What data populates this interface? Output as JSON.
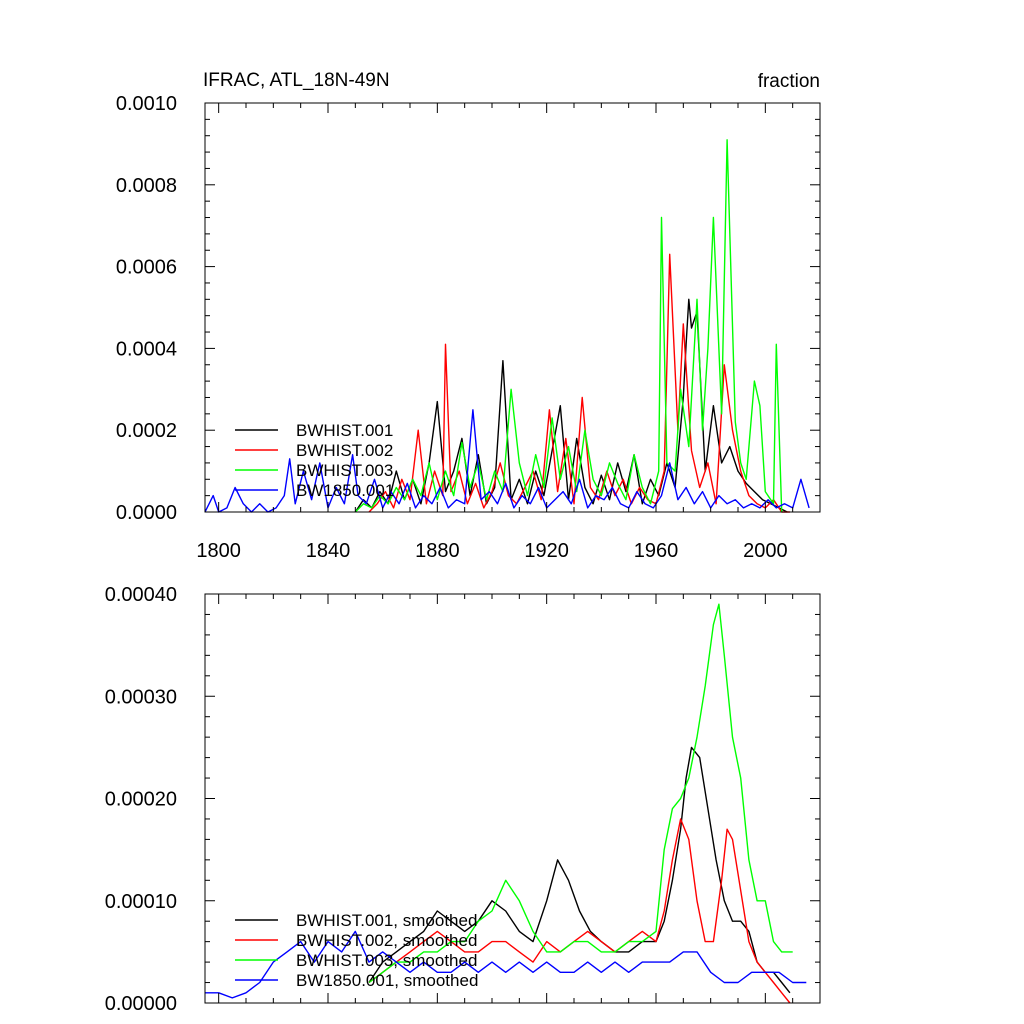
{
  "figure": {
    "title_left": "IFRAC, ATL_18N-49N",
    "title_right": "fraction"
  },
  "colors": {
    "BWHIST.001": "#000000",
    "BWHIST.002": "#ff0000",
    "BWHIST.003": "#00ff00",
    "BW1850.001": "#0000ff"
  },
  "chart_data": [
    {
      "type": "line",
      "title": "IFRAC, ATL_18N-49N",
      "units_label": "fraction",
      "xlim": [
        1795,
        2020
      ],
      "ylim": [
        0,
        0.001
      ],
      "xticks": [
        1800,
        1840,
        1880,
        1920,
        1960,
        2000
      ],
      "xtick_labels": [
        "1800",
        "1840",
        "1880",
        "1920",
        "1960",
        "2000"
      ],
      "yticks": [
        0,
        0.0002,
        0.0004,
        0.0006,
        0.0008,
        0.001
      ],
      "ytick_labels": [
        "0.0000",
        "0.0002",
        "0.0004",
        "0.0006",
        "0.0008",
        "0.0010"
      ],
      "legend_position": "bottom-left",
      "series": [
        {
          "name": "BWHIST.001",
          "color": "#000000",
          "x": [
            1850,
            1853,
            1856,
            1859,
            1862,
            1865,
            1868,
            1871,
            1874,
            1877,
            1880,
            1883,
            1886,
            1889,
            1892,
            1895,
            1898,
            1901,
            1904,
            1907,
            1910,
            1913,
            1916,
            1919,
            1922,
            1925,
            1928,
            1931,
            1934,
            1937,
            1940,
            1943,
            1946,
            1949,
            1952,
            1955,
            1958,
            1961,
            1964,
            1967,
            1970,
            1971,
            1972,
            1973,
            1975,
            1978,
            1981,
            1984,
            1987,
            1990,
            1993,
            1996,
            1999,
            2002,
            2005,
            2008
          ],
          "y": [
            0,
            3e-05,
            1e-05,
            5e-05,
            2e-05,
            0.0001,
            3e-05,
            8e-05,
            2e-05,
            0.00012,
            0.00027,
            5e-05,
            0.0001,
            0.00018,
            4e-05,
            0.00014,
            2e-05,
            6e-05,
            0.00037,
            3e-05,
            8e-05,
            2e-05,
            0.0001,
            4e-05,
            0.00015,
            0.00026,
            3e-05,
            0.00018,
            6e-05,
            2e-05,
            9e-05,
            3e-05,
            0.00012,
            5e-05,
            0.00014,
            2e-05,
            8e-05,
            4e-05,
            0.00012,
            6e-05,
            0.00028,
            0.00041,
            0.00052,
            0.00045,
            0.00049,
            0.0001,
            0.00026,
            0.00012,
            0.00016,
            0.0001,
            7e-05,
            5e-05,
            3e-05,
            2e-05,
            1e-05,
            0
          ]
        },
        {
          "name": "BWHIST.002",
          "color": "#ff0000",
          "x": [
            1855,
            1858,
            1861,
            1864,
            1867,
            1870,
            1873,
            1876,
            1879,
            1882,
            1883,
            1885,
            1888,
            1891,
            1894,
            1897,
            1900,
            1903,
            1906,
            1909,
            1912,
            1915,
            1918,
            1921,
            1924,
            1927,
            1930,
            1933,
            1936,
            1939,
            1942,
            1945,
            1948,
            1951,
            1954,
            1957,
            1960,
            1963,
            1965,
            1968,
            1970,
            1973,
            1976,
            1979,
            1982,
            1985,
            1988,
            1991,
            1994,
            1997,
            2000,
            2003,
            2006,
            2009
          ],
          "y": [
            0,
            2e-05,
            5e-05,
            1e-05,
            8e-05,
            3e-05,
            0.0002,
            2e-05,
            0.0001,
            4e-05,
            0.00041,
            5e-05,
            0.0001,
            2e-05,
            7e-05,
            1e-05,
            5e-05,
            0.00012,
            4e-05,
            2e-05,
            6e-05,
            0.0001,
            3e-05,
            0.00025,
            5e-05,
            0.00018,
            2e-05,
            0.00028,
            6e-05,
            3e-05,
            0.0001,
            4e-05,
            8e-05,
            2e-05,
            6e-05,
            3e-05,
            2e-05,
            0.0001,
            0.00063,
            0.0002,
            0.00046,
            0.00015,
            6e-05,
            0.00012,
            2e-05,
            0.00036,
            0.0002,
            0.0001,
            4e-05,
            2e-05,
            1e-05,
            3e-05,
            0,
            0
          ]
        },
        {
          "name": "BWHIST.003",
          "color": "#00ff00",
          "x": [
            1850,
            1853,
            1856,
            1859,
            1862,
            1865,
            1868,
            1871,
            1874,
            1877,
            1880,
            1883,
            1886,
            1889,
            1892,
            1895,
            1898,
            1901,
            1904,
            1907,
            1910,
            1913,
            1916,
            1919,
            1922,
            1925,
            1928,
            1931,
            1934,
            1937,
            1940,
            1943,
            1946,
            1949,
            1952,
            1955,
            1958,
            1961,
            1962,
            1964,
            1967,
            1969,
            1972,
            1975,
            1977,
            1979,
            1981,
            1984,
            1986,
            1989,
            1991,
            1993,
            1996,
            1998,
            2000,
            2003,
            2004,
            2006
          ],
          "y": [
            0,
            2e-05,
            1e-05,
            4e-05,
            2e-05,
            6e-05,
            3e-05,
            8e-05,
            4e-05,
            0.00012,
            3e-05,
            0.0001,
            4e-05,
            0.00017,
            6e-05,
            0.00012,
            3e-05,
            0.0001,
            5e-05,
            0.0003,
            0.00012,
            4e-05,
            0.00014,
            6e-05,
            0.00023,
            8e-05,
            0.00016,
            5e-05,
            0.0002,
            8e-05,
            4e-05,
            0.00012,
            7e-05,
            3e-05,
            0.00014,
            6e-05,
            2e-05,
            0.0001,
            0.00072,
            0.00012,
            0.0001,
            0.0003,
            0.00016,
            0.00052,
            0.0002,
            0.0004,
            0.00072,
            0.00024,
            0.00091,
            0.00022,
            0.00012,
            8e-05,
            0.00032,
            0.00026,
            5e-05,
            2e-05,
            0.00041,
            0
          ]
        },
        {
          "name": "BW1850.001",
          "color": "#0000ff",
          "x": [
            1795,
            1798,
            1800,
            1803,
            1806,
            1809,
            1812,
            1815,
            1818,
            1821,
            1824,
            1826,
            1828,
            1831,
            1834,
            1837,
            1840,
            1843,
            1846,
            1849,
            1851,
            1854,
            1857,
            1860,
            1863,
            1866,
            1869,
            1872,
            1875,
            1878,
            1881,
            1884,
            1887,
            1890,
            1893,
            1896,
            1899,
            1902,
            1905,
            1908,
            1911,
            1914,
            1917,
            1920,
            1923,
            1926,
            1929,
            1932,
            1935,
            1938,
            1941,
            1944,
            1947,
            1950,
            1953,
            1956,
            1959,
            1962,
            1965,
            1968,
            1971,
            1974,
            1977,
            1980,
            1983,
            1986,
            1989,
            1992,
            1995,
            1998,
            2001,
            2004,
            2007,
            2010,
            2013,
            2016
          ],
          "y": [
            0,
            4e-05,
            0,
            1e-05,
            6e-05,
            2e-05,
            0,
            2e-05,
            0,
            1e-05,
            4e-05,
            0.00013,
            2e-05,
            0.0001,
            3e-05,
            0.00012,
            1e-05,
            6e-05,
            2e-05,
            0.00014,
            4e-05,
            2e-05,
            8e-05,
            1e-05,
            5e-05,
            2e-05,
            7e-05,
            1e-05,
            4e-05,
            2e-05,
            6e-05,
            1e-05,
            3e-05,
            2e-05,
            0.00025,
            3e-05,
            5e-05,
            2e-05,
            7e-05,
            1e-05,
            4e-05,
            2e-05,
            6e-05,
            1e-05,
            3e-05,
            5e-05,
            2e-05,
            8e-05,
            1e-05,
            4e-05,
            3e-05,
            6e-05,
            2e-05,
            1e-05,
            5e-05,
            2e-05,
            1e-05,
            4e-05,
            0.00012,
            3e-05,
            6e-05,
            2e-05,
            5e-05,
            1e-05,
            4e-05,
            2e-05,
            3e-05,
            1e-05,
            2e-05,
            1e-05,
            3e-05,
            1e-05,
            2e-05,
            1e-05,
            8e-05,
            1e-05
          ]
        }
      ]
    },
    {
      "type": "line",
      "xlim": [
        1795,
        2020
      ],
      "ylim": [
        0,
        0.0004
      ],
      "xticks": [
        1800,
        1840,
        1880,
        1920,
        1960,
        2000
      ],
      "yticks": [
        0,
        0.0001,
        0.0002,
        0.0003,
        0.0004
      ],
      "ytick_labels": [
        "0.00000",
        "0.00010",
        "0.00020",
        "0.00030",
        "0.00040"
      ],
      "legend_position": "bottom-left",
      "series": [
        {
          "name": "BWHIST.001, smoothed",
          "color": "#000000",
          "x": [
            1855,
            1860,
            1865,
            1870,
            1875,
            1880,
            1885,
            1890,
            1895,
            1900,
            1905,
            1910,
            1915,
            1920,
            1924,
            1928,
            1932,
            1936,
            1940,
            1945,
            1950,
            1955,
            1960,
            1963,
            1966,
            1969,
            1971,
            1973,
            1976,
            1979,
            1982,
            1985,
            1988,
            1991,
            1994,
            1997,
            2000,
            2003,
            2006,
            2009
          ],
          "y": [
            2e-05,
            4e-05,
            5e-05,
            6e-05,
            7e-05,
            9e-05,
            8e-05,
            7e-05,
            8e-05,
            0.0001,
            9e-05,
            7e-05,
            6e-05,
            0.0001,
            0.00014,
            0.00012,
            9e-05,
            7e-05,
            6e-05,
            5e-05,
            5e-05,
            6e-05,
            6e-05,
            8e-05,
            0.00012,
            0.00017,
            0.00022,
            0.00025,
            0.00024,
            0.00019,
            0.00014,
            0.0001,
            8e-05,
            8e-05,
            7e-05,
            4e-05,
            3e-05,
            3e-05,
            2e-05,
            1e-05
          ]
        },
        {
          "name": "BWHIST.002, smoothed",
          "color": "#ff0000",
          "x": [
            1855,
            1860,
            1865,
            1870,
            1875,
            1880,
            1885,
            1890,
            1895,
            1900,
            1905,
            1910,
            1915,
            1920,
            1925,
            1930,
            1935,
            1940,
            1945,
            1950,
            1955,
            1960,
            1963,
            1966,
            1969,
            1972,
            1975,
            1978,
            1981,
            1984,
            1986,
            1988,
            1991,
            1994,
            1997,
            2000,
            2003,
            2006,
            2009
          ],
          "y": [
            2e-05,
            3e-05,
            4e-05,
            5e-05,
            6e-05,
            7e-05,
            6e-05,
            5e-05,
            5e-05,
            6e-05,
            6e-05,
            5e-05,
            4e-05,
            6e-05,
            5e-05,
            6e-05,
            7e-05,
            6e-05,
            5e-05,
            6e-05,
            7e-05,
            6e-05,
            9e-05,
            0.00014,
            0.00018,
            0.00016,
            0.0001,
            6e-05,
            6e-05,
            0.00012,
            0.00017,
            0.00016,
            0.00011,
            6e-05,
            4e-05,
            3e-05,
            2e-05,
            1e-05,
            0
          ]
        },
        {
          "name": "BWHIST.003, smoothed",
          "color": "#00ff00",
          "x": [
            1855,
            1860,
            1865,
            1870,
            1875,
            1880,
            1885,
            1890,
            1895,
            1900,
            1905,
            1910,
            1915,
            1920,
            1925,
            1930,
            1935,
            1940,
            1945,
            1950,
            1955,
            1960,
            1963,
            1966,
            1969,
            1972,
            1975,
            1978,
            1981,
            1983,
            1985,
            1988,
            1991,
            1994,
            1997,
            2000,
            2003,
            2006,
            2010
          ],
          "y": [
            2e-05,
            3e-05,
            4e-05,
            4e-05,
            5e-05,
            5e-05,
            6e-05,
            6e-05,
            8e-05,
            9e-05,
            0.00012,
            0.0001,
            7e-05,
            5e-05,
            5e-05,
            6e-05,
            6e-05,
            5e-05,
            5e-05,
            6e-05,
            6e-05,
            7e-05,
            0.00015,
            0.00019,
            0.0002,
            0.00022,
            0.00026,
            0.00031,
            0.00037,
            0.00039,
            0.00034,
            0.00026,
            0.00022,
            0.00014,
            0.0001,
            0.0001,
            6e-05,
            5e-05,
            5e-05
          ]
        },
        {
          "name": "BW1850.001, smoothed",
          "color": "#0000ff",
          "x": [
            1795,
            1800,
            1805,
            1810,
            1815,
            1820,
            1825,
            1830,
            1835,
            1840,
            1845,
            1850,
            1855,
            1860,
            1865,
            1870,
            1875,
            1880,
            1885,
            1890,
            1895,
            1900,
            1905,
            1910,
            1915,
            1920,
            1925,
            1930,
            1935,
            1940,
            1945,
            1950,
            1955,
            1960,
            1965,
            1970,
            1975,
            1980,
            1985,
            1990,
            1995,
            2000,
            2005,
            2010,
            2015
          ],
          "y": [
            1e-05,
            1e-05,
            5e-06,
            1e-05,
            2e-05,
            4e-05,
            5e-05,
            6e-05,
            4e-05,
            6e-05,
            5e-05,
            7e-05,
            4e-05,
            5e-05,
            4e-05,
            3e-05,
            4e-05,
            3e-05,
            3e-05,
            4e-05,
            3e-05,
            4e-05,
            3e-05,
            4e-05,
            3e-05,
            4e-05,
            3e-05,
            3e-05,
            4e-05,
            3e-05,
            4e-05,
            3e-05,
            4e-05,
            4e-05,
            4e-05,
            5e-05,
            5e-05,
            3e-05,
            2e-05,
            2e-05,
            3e-05,
            3e-05,
            3e-05,
            2e-05,
            2e-05
          ]
        }
      ]
    }
  ]
}
